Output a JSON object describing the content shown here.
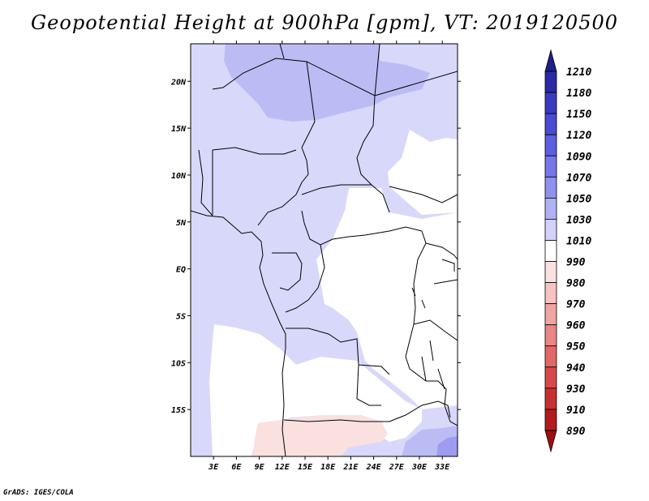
{
  "title": "Geopotential Height at 900hPa [gpm], VT: 2019120500",
  "credit": "GrADS: IGES/COLA",
  "map": {
    "lon_range": [
      0,
      35
    ],
    "lat_range": [
      -20,
      24
    ],
    "lon_ticks": [
      {
        "v": 3,
        "label": "3E"
      },
      {
        "v": 6,
        "label": "6E"
      },
      {
        "v": 9,
        "label": "9E"
      },
      {
        "v": 12,
        "label": "12E"
      },
      {
        "v": 15,
        "label": "15E"
      },
      {
        "v": 18,
        "label": "18E"
      },
      {
        "v": 21,
        "label": "21E"
      },
      {
        "v": 24,
        "label": "24E"
      },
      {
        "v": 27,
        "label": "27E"
      },
      {
        "v": 30,
        "label": "30E"
      },
      {
        "v": 33,
        "label": "33E"
      }
    ],
    "lat_ticks": [
      {
        "v": 20,
        "label": "20N"
      },
      {
        "v": 15,
        "label": "15N"
      },
      {
        "v": 10,
        "label": "10N"
      },
      {
        "v": 5,
        "label": "5N"
      },
      {
        "v": 0,
        "label": "EQ"
      },
      {
        "v": -5,
        "label": "5S"
      },
      {
        "v": -10,
        "label": "10S"
      },
      {
        "v": -15,
        "label": "15S"
      }
    ]
  },
  "colorbar": {
    "levels": [
      "1210",
      "1180",
      "1150",
      "1120",
      "1090",
      "1070",
      "1050",
      "1030",
      "1010",
      "990",
      "980",
      "970",
      "960",
      "950",
      "940",
      "930",
      "910",
      "890"
    ],
    "colors": [
      "#1f1f8a",
      "#2a2aa6",
      "#3a3ac0",
      "#4a4ad2",
      "#5e5ee0",
      "#7676e8",
      "#9090ee",
      "#b0b0f4",
      "#d2d2fa",
      "#ffffff",
      "#fbe0e0",
      "#f6c2c2",
      "#f0a4a4",
      "#ea8686",
      "#e26868",
      "#d84a4a",
      "#c83030",
      "#b01c1c",
      "#9a1010"
    ]
  },
  "colors": {
    "c1010": "#d8d8fb",
    "c1030": "#bcbcf5",
    "c1050": "#9c9cf0",
    "c990": "#ffffff",
    "c980": "#fbe0e0",
    "border": "#000000"
  }
}
